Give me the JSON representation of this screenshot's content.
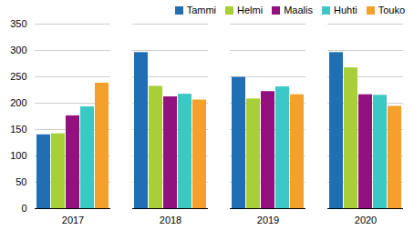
{
  "chart_data": {
    "type": "bar",
    "categories": [
      "2017",
      "2018",
      "2019",
      "2020"
    ],
    "series": [
      {
        "name": "Tammi",
        "color": "#1f6fb2",
        "values": [
          140,
          296,
          249,
          296
        ]
      },
      {
        "name": "Helmi",
        "color": "#a8cf38",
        "values": [
          142,
          232,
          208,
          267
        ]
      },
      {
        "name": "Maalis",
        "color": "#92117e",
        "values": [
          176,
          212,
          222,
          216
        ]
      },
      {
        "name": "Huhti",
        "color": "#3cc9c6",
        "values": [
          193,
          217,
          231,
          215
        ]
      },
      {
        "name": "Touko",
        "color": "#f5a02a",
        "values": [
          238,
          206,
          216,
          194
        ]
      }
    ],
    "ylim": [
      0,
      350
    ],
    "yticks": [
      0,
      50,
      100,
      150,
      200,
      250,
      300,
      350
    ],
    "grid": true,
    "legend": "top-right"
  }
}
